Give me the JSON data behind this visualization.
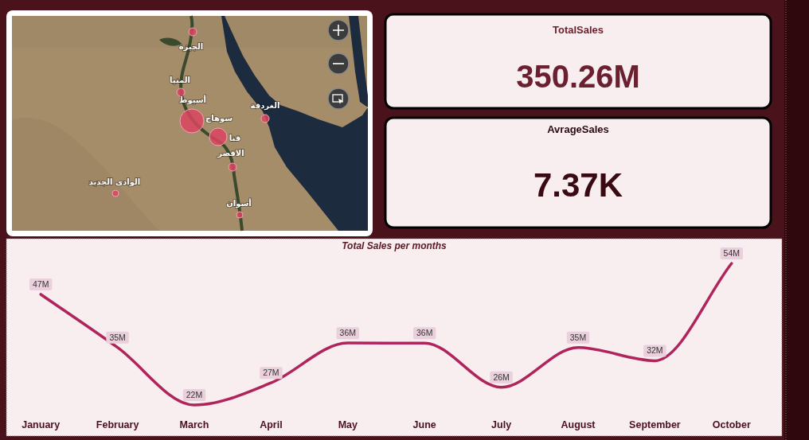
{
  "chart_data": [
    {
      "type": "other",
      "annotations": [
        "الجيزة",
        "المنيا",
        "أسيوط",
        "سوهاج",
        "قنا",
        "الاقصر",
        "الوادى الجديد",
        "أسوان",
        "الغردقة"
      ]
    },
    {
      "type": "other",
      "title": "TotalSales",
      "annotations": [
        "350.26M"
      ]
    },
    {
      "type": "other",
      "title": "AvrageSales",
      "annotations": [
        "7.37K"
      ]
    },
    {
      "type": "line",
      "title": "Total Sales per months",
      "categories": [
        "January",
        "February",
        "March",
        "April",
        "May",
        "June",
        "July",
        "August",
        "September",
        "October"
      ],
      "values": [
        47,
        35,
        22,
        27,
        36,
        36,
        26,
        35,
        32,
        54
      ],
      "value_labels": [
        "47M",
        "35M",
        "22M",
        "27M",
        "36M",
        "36M",
        "26M",
        "35M",
        "32M",
        "54M"
      ],
      "color": "#b0245c"
    }
  ]
}
